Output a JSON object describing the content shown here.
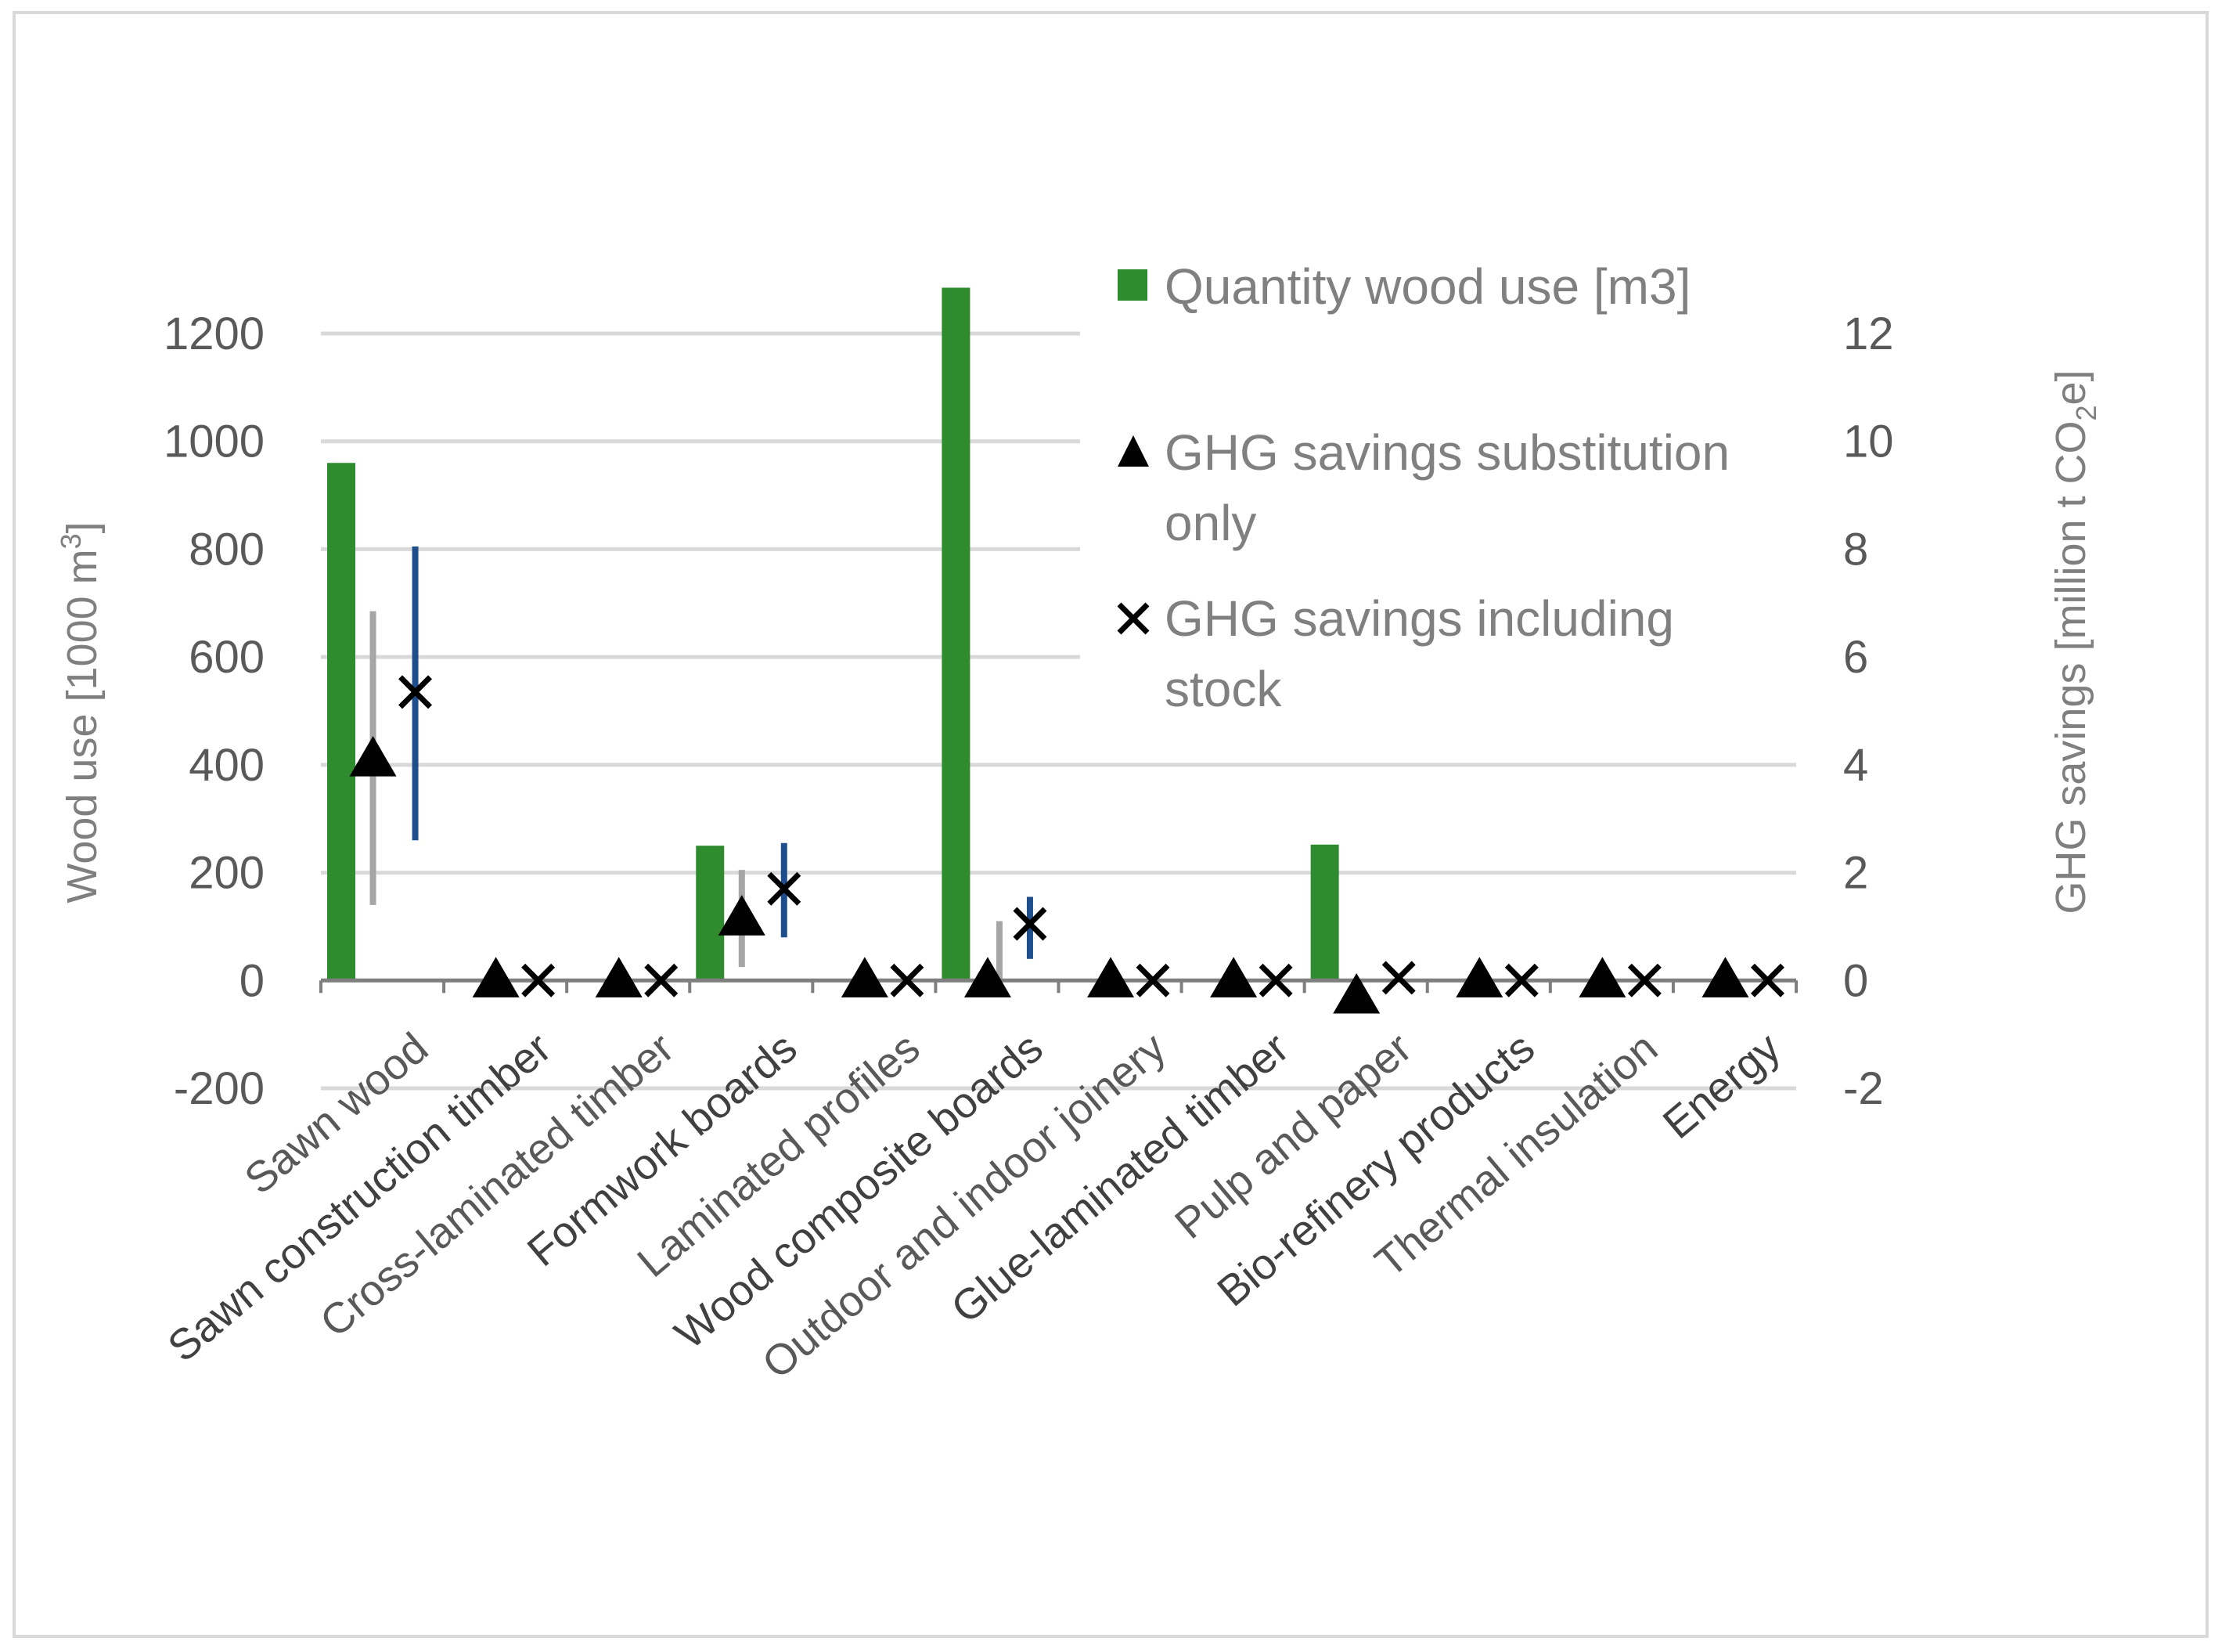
{
  "chart_data": {
    "type": "bar",
    "title": "",
    "categories": [
      "Sawn wood",
      "Sawn construction timber",
      "Cross-laminated timber",
      "Formwork boards",
      "Laminated profiles",
      "Wood composite boards",
      "Outdoor and indoor joinery",
      "Glue-laminated timber",
      "Pulp and paper",
      "Bio-refinery products",
      "Thermal insulation",
      "Energy"
    ],
    "left_axis": {
      "label_main": "Wood use [1000 m",
      "label_sup": "3",
      "label_end": "]",
      "ylim": [
        -200,
        1200
      ],
      "ticks": [
        "-200",
        "0",
        "200",
        "400",
        "600",
        "800",
        "1000",
        "1200"
      ]
    },
    "right_axis": {
      "label_main": "GHG savings [million t CO",
      "label_sub": "2",
      "label_end": "e]",
      "ylim": [
        -2,
        12
      ],
      "ticks": [
        "-2",
        "0",
        "2",
        "4",
        "6",
        "8",
        "10",
        "12"
      ]
    },
    "series": [
      {
        "name": "Quantity wood use [m3]",
        "kind": "bar",
        "axis": "left",
        "color": "#2e8b2e",
        "values": [
          960,
          0,
          0,
          250,
          0,
          1285,
          0,
          0,
          252,
          0,
          0,
          0
        ]
      },
      {
        "name": "GHG savings substitution only",
        "kind": "triangle",
        "axis": "right",
        "color": "#000000",
        "error_color": "#a6a6a6",
        "values": [
          4.1,
          0,
          0,
          1.15,
          0,
          0,
          0,
          0,
          -0.3,
          0,
          0,
          0
        ],
        "error_low": [
          1.4,
          null,
          null,
          0.25,
          null,
          null,
          null,
          null,
          null,
          null,
          null,
          null
        ],
        "error_high": [
          6.85,
          null,
          null,
          2.05,
          null,
          null,
          null,
          null,
          null,
          null,
          null,
          null
        ]
      },
      {
        "name": "GHG savings including stock",
        "kind": "x",
        "axis": "right",
        "color": "#000000",
        "error_color": "#1f4e8c",
        "values": [
          5.35,
          0,
          0,
          1.7,
          0,
          1.05,
          0,
          0,
          0.05,
          0,
          0,
          0
        ],
        "error_low": [
          2.6,
          null,
          null,
          0.8,
          null,
          0.4,
          null,
          null,
          null,
          null,
          null,
          null
        ],
        "error_high": [
          8.05,
          null,
          null,
          2.55,
          null,
          1.55,
          null,
          null,
          null,
          null,
          null,
          null
        ]
      }
    ],
    "extra_error_bars": [
      {
        "category": "Wood composite boards",
        "axis": "right",
        "low": 0,
        "high": 1.1,
        "color": "#a6a6a6"
      }
    ],
    "legend": {
      "position": "top-right",
      "items": [
        {
          "line1": "Quantity wood use [m3]",
          "line2": ""
        },
        {
          "line1": "GHG savings substitution",
          "line2": "only"
        },
        {
          "line1": "GHG savings including",
          "line2": "stock"
        }
      ]
    },
    "colors": {
      "grid": "#d9d9d9",
      "zero_line": "#7f7f7f",
      "bar": "#2e8b2e",
      "substitution_error": "#a6a6a6",
      "stock_error": "#1f4e8c"
    }
  }
}
